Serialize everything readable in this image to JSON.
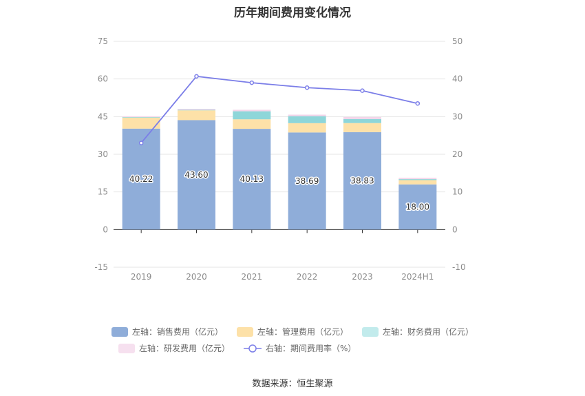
{
  "chart_data": {
    "type": "bar",
    "title": "历年期间费用变化情况",
    "categories": [
      "2019",
      "2020",
      "2021",
      "2022",
      "2023",
      "2024H1"
    ],
    "y_left": {
      "ylim": [
        -15,
        75
      ],
      "ticks": [
        -15,
        0,
        15,
        30,
        45,
        60,
        75
      ]
    },
    "y_right": {
      "ylim": [
        -10,
        50
      ],
      "ticks": [
        -10,
        0,
        10,
        20,
        30,
        40,
        50
      ]
    },
    "series": [
      {
        "name": "左轴：销售费用（亿元）",
        "type": "bar",
        "axis": "left",
        "color": "#8fadd9",
        "values": [
          40.22,
          43.6,
          40.13,
          38.69,
          38.83,
          18.0
        ],
        "labels": [
          "40.22",
          "43.60",
          "40.13",
          "38.69",
          "38.83",
          "18.00"
        ]
      },
      {
        "name": "左轴：管理费用（亿元）",
        "type": "bar",
        "axis": "left",
        "color": "#fde1a8",
        "values": [
          4.4,
          3.9,
          3.8,
          3.7,
          3.6,
          1.7
        ]
      },
      {
        "name": "左轴：财务费用（亿元）",
        "type": "bar",
        "axis": "left",
        "color": "#8ed6d9",
        "values": [
          0.2,
          0.2,
          3.2,
          2.8,
          1.6,
          0.4
        ]
      },
      {
        "name": "左轴：研发费用（亿元）",
        "type": "bar",
        "axis": "left",
        "color": "#f3d5ea",
        "values": [
          0.3,
          0.4,
          0.6,
          0.6,
          0.8,
          0.5
        ]
      },
      {
        "name": "右轴：期间费用率（%）",
        "type": "line",
        "axis": "right",
        "color": "#7b7ee8",
        "values": [
          23.0,
          40.7,
          39.0,
          37.7,
          36.9,
          33.5
        ]
      }
    ],
    "legend_position": "bottom",
    "grid": true
  },
  "source": "数据来源：恒生聚源"
}
